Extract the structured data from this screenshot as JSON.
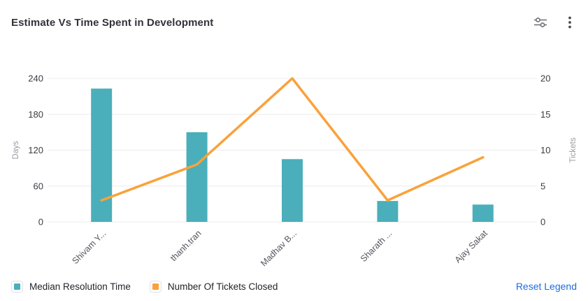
{
  "header": {
    "title": "Estimate Vs Time Spent in Development",
    "icons": [
      {
        "name": "sliders-icon"
      },
      {
        "name": "kebab-menu-icon"
      }
    ]
  },
  "legend": {
    "items": [
      {
        "label": "Median Resolution Time",
        "color": "#4AAFBA"
      },
      {
        "label": "Number Of Tickets Closed",
        "color": "#F9A23B"
      }
    ],
    "reset_label": "Reset Legend"
  },
  "chart_data": {
    "type": "combo-bar-line",
    "categories": [
      "Shivam Y...",
      "thanh.tran",
      "Madhav B...",
      "Sharath ...",
      "Ajay Sakat"
    ],
    "series": [
      {
        "name": "Median Resolution Time",
        "type": "bar",
        "axis": "left",
        "color": "#4AAFBA",
        "values": [
          223,
          150,
          105,
          35,
          29
        ]
      },
      {
        "name": "Number Of Tickets Closed",
        "type": "line",
        "axis": "right",
        "color": "#F9A23B",
        "values": [
          3,
          8,
          20,
          3,
          9
        ]
      }
    ],
    "left_axis": {
      "name": "Days",
      "ticks": [
        0,
        60,
        120,
        180,
        240
      ],
      "min": 0,
      "max": 240
    },
    "right_axis": {
      "name": "Tickets",
      "ticks": [
        0,
        5,
        10,
        15,
        20
      ],
      "min": 0,
      "max": 20
    },
    "grid": true,
    "legend_position": "bottom",
    "colors": {
      "grid_line": "#ececec",
      "axis_tick_text": "#3b3c43",
      "axis_name_text": "#9b9ba3",
      "category_text": "#55565e"
    }
  }
}
